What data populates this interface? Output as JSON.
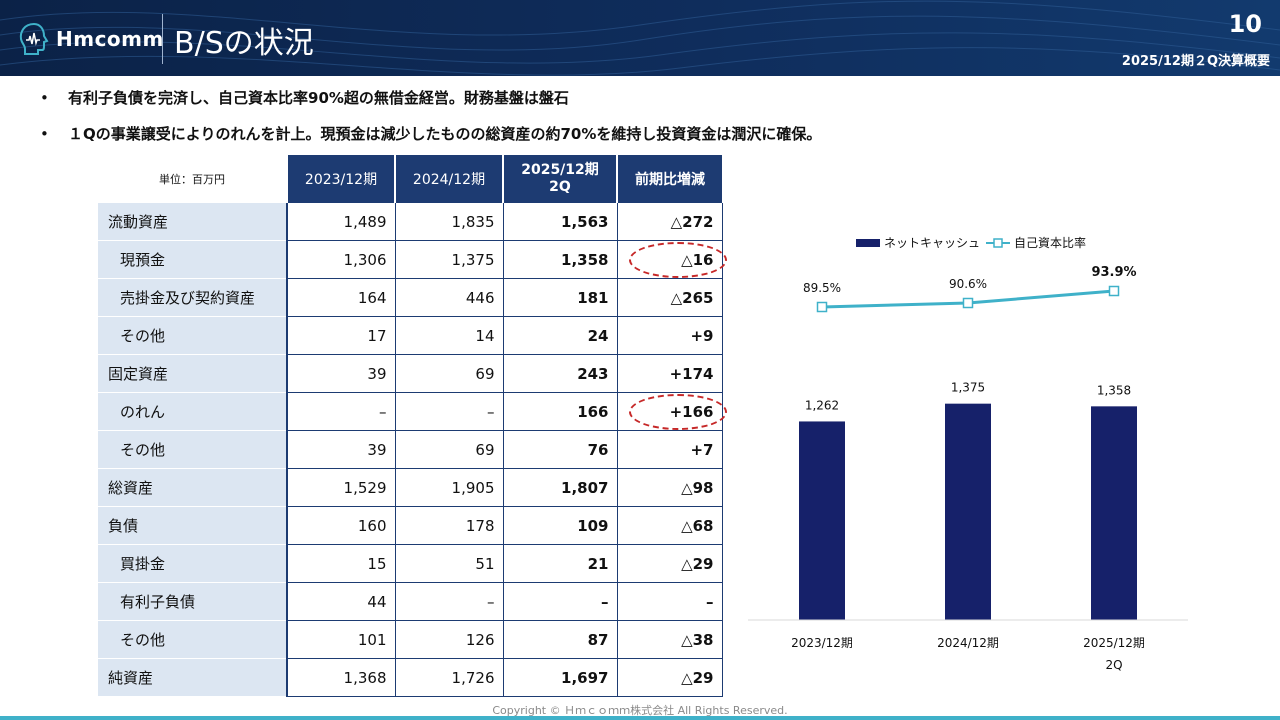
{
  "header": {
    "logo_text": "Hmcomm",
    "title": "B/Sの状況",
    "page_number": "10",
    "subtitle": "2025/12期２Q決算概要"
  },
  "bullets": [
    {
      "marker": "•",
      "text": "有利子負債を完済し、自己資本比率90%超の無借金経営。財務基盤は盤石"
    },
    {
      "marker": "•",
      "text": "１Qの事業譲受によりのれんを計上。現預金は減少したものの総資産の約70%を維持し投資資金は潤沢に確保。"
    }
  ],
  "table": {
    "unit_label": "単位：百万円",
    "columns": [
      "2023/12期",
      "2024/12期",
      "2025/12期\n2Q",
      "前期比増減"
    ],
    "rows": [
      {
        "label": "流動資産",
        "indent": false,
        "values": [
          "1,489",
          "1,835",
          "1,563",
          "△272"
        ]
      },
      {
        "label": "現預金",
        "indent": true,
        "values": [
          "1,306",
          "1,375",
          "1,358",
          "△16"
        ]
      },
      {
        "label": "売掛金及び契約資産",
        "indent": true,
        "values": [
          "164",
          "446",
          "181",
          "△265"
        ]
      },
      {
        "label": "その他",
        "indent": true,
        "values": [
          "17",
          "14",
          "24",
          "+9"
        ]
      },
      {
        "label": "固定資産",
        "indent": false,
        "values": [
          "39",
          "69",
          "243",
          "+174"
        ]
      },
      {
        "label": "のれん",
        "indent": true,
        "values": [
          "–",
          "–",
          "166",
          "+166"
        ]
      },
      {
        "label": "その他",
        "indent": true,
        "values": [
          "39",
          "69",
          "76",
          "+7"
        ]
      },
      {
        "label": "総資産",
        "indent": false,
        "values": [
          "1,529",
          "1,905",
          "1,807",
          "△98"
        ]
      },
      {
        "label": "負債",
        "indent": false,
        "values": [
          "160",
          "178",
          "109",
          "△68"
        ]
      },
      {
        "label": "買掛金",
        "indent": true,
        "values": [
          "15",
          "51",
          "21",
          "△29"
        ]
      },
      {
        "label": "有利子負債",
        "indent": true,
        "values": [
          "44",
          "–",
          "–",
          "–"
        ]
      },
      {
        "label": "その他",
        "indent": true,
        "values": [
          "101",
          "126",
          "87",
          "△38"
        ]
      },
      {
        "label": "純資産",
        "indent": false,
        "values": [
          "1,368",
          "1,726",
          "1,697",
          "△29"
        ]
      }
    ]
  },
  "chart_data": {
    "type": "bar",
    "categories": [
      "2023/12期",
      "2024/12期",
      "2025/12期\n2Q"
    ],
    "series": [
      {
        "name": "ネットキャッシュ",
        "type": "bar",
        "values": [
          1262,
          1375,
          1358
        ],
        "labels": [
          "1,262",
          "1,375",
          "1,358"
        ],
        "color": "#16216a"
      },
      {
        "name": "自己資本比率",
        "type": "line",
        "values": [
          89.5,
          90.6,
          93.9
        ],
        "labels": [
          "89.5%",
          "90.6%",
          "93.9%"
        ],
        "color": "#3fb1c9"
      }
    ],
    "legend_position": "top",
    "grid": false
  },
  "colors": {
    "header_bg": "#0f2d5c",
    "table_header": "#1d3b72",
    "label_bg": "#dce6f2",
    "bar": "#16216a",
    "line": "#3fb1c9",
    "highlight": "#c62828"
  },
  "footer": {
    "copyright": "Copyright © Ｈｍｃｏｍｍ株式会社 All Rights Reserved."
  }
}
